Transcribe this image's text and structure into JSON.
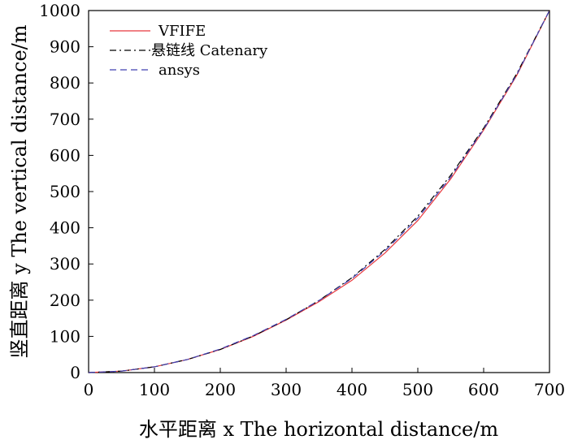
{
  "chart_data": {
    "type": "line",
    "xlabel": "水平距离 x The horizontal distance/m",
    "ylabel": "竖直距离 y The vertical distance/m",
    "xlim": [
      0,
      700
    ],
    "ylim": [
      0,
      1000
    ],
    "x_ticks": [
      "0",
      "100",
      "200",
      "300",
      "400",
      "500",
      "600",
      "700"
    ],
    "y_ticks": [
      "0",
      "100",
      "200",
      "300",
      "400",
      "500",
      "600",
      "700",
      "800",
      "900",
      "1000"
    ],
    "grid": false,
    "legend_position": "top-left",
    "series": [
      {
        "name": "VFIFE",
        "color": "#e8383d",
        "style": "solid",
        "x": [
          0,
          50,
          100,
          150,
          200,
          250,
          300,
          350,
          400,
          450,
          500,
          550,
          600,
          650,
          700
        ],
        "y": [
          0,
          4,
          16,
          36,
          64,
          100,
          145,
          196,
          255,
          330,
          420,
          535,
          670,
          820,
          1000
        ]
      },
      {
        "name": "悬链线 Catenary",
        "color": "#000000",
        "style": "dashdot",
        "x": [
          0,
          50,
          100,
          150,
          200,
          250,
          300,
          350,
          400,
          450,
          500,
          550,
          600,
          650,
          700
        ],
        "y": [
          0,
          4,
          16,
          36,
          64,
          101,
          146,
          199,
          262,
          340,
          432,
          545,
          675,
          825,
          1000
        ]
      },
      {
        "name": "ansys",
        "color": "#4040b0",
        "style": "dashed",
        "x": [
          0,
          50,
          100,
          150,
          200,
          250,
          300,
          350,
          400,
          450,
          500,
          550,
          600,
          650,
          700
        ],
        "y": [
          0,
          4,
          16,
          36,
          65,
          102,
          147,
          199,
          260,
          336,
          427,
          540,
          672,
          822,
          1000
        ]
      }
    ]
  }
}
